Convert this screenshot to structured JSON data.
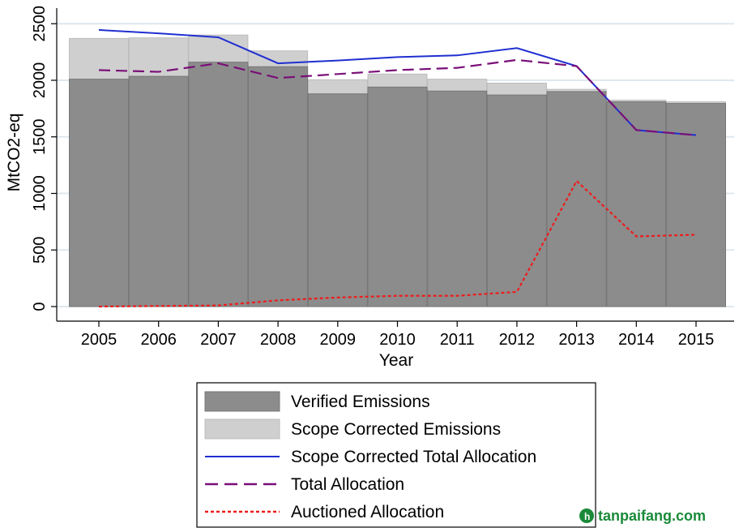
{
  "chart_data": {
    "type": "bar",
    "categories": [
      "2005",
      "2006",
      "2007",
      "2008",
      "2009",
      "2010",
      "2011",
      "2012",
      "2013",
      "2014",
      "2015"
    ],
    "ylabel": "MtCO2-eq",
    "xlabel": "Year",
    "ylim": [
      0,
      2600
    ],
    "yticks": [
      0,
      500,
      1000,
      1500,
      2000,
      2500
    ],
    "grid": true,
    "legend_position": "bottom",
    "series": [
      {
        "name": "Verified Emissions",
        "kind": "bar",
        "color": "#8c8c8c",
        "values": [
          2010,
          2035,
          2160,
          2120,
          1880,
          1940,
          1905,
          1870,
          1900,
          1810,
          1795
        ]
      },
      {
        "name": "Scope Corrected Emissions",
        "kind": "bar",
        "color": "#cfcfcf",
        "values": [
          2370,
          2375,
          2400,
          2260,
          2005,
          2055,
          2010,
          1975,
          1920,
          1825,
          1810
        ]
      },
      {
        "name": "Scope Corrected Total Allocation",
        "kind": "line",
        "style": "solid",
        "color": "#1f2fd0",
        "values": [
          2445,
          2415,
          2380,
          2150,
          2175,
          2205,
          2220,
          2285,
          2125,
          1560,
          1515
        ]
      },
      {
        "name": "Total Allocation",
        "kind": "line",
        "style": "dashed",
        "color": "#7a0f78",
        "values": [
          2090,
          2075,
          2150,
          2020,
          2055,
          2090,
          2110,
          2180,
          2125,
          1560,
          1515
        ]
      },
      {
        "name": "Auctioned Allocation",
        "kind": "line",
        "style": "dotted",
        "color": "#ee1c1c",
        "values": [
          0,
          5,
          10,
          55,
          80,
          95,
          95,
          130,
          1110,
          620,
          635
        ]
      }
    ]
  },
  "watermark": {
    "text": "tanpaifang.com",
    "color": "#1a8a3a"
  }
}
